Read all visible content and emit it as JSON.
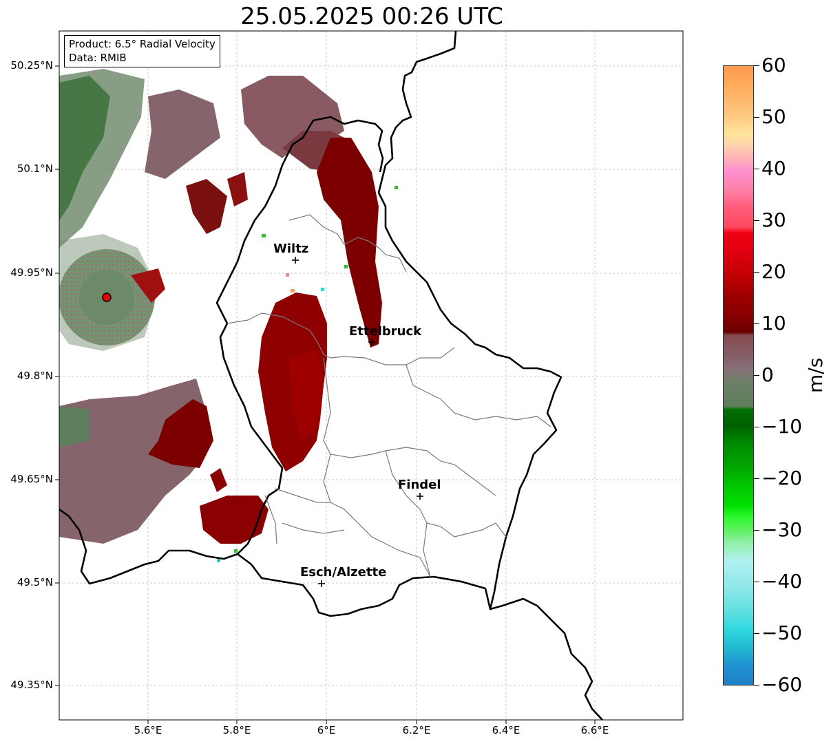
{
  "title": "25.05.2025 00:26 UTC",
  "info_box": {
    "product": "Product: 6.5° Radial Velocity",
    "data": "Data: RMIB"
  },
  "lat_ticks": [
    "50.25°N",
    "50.1°N",
    "49.95°N",
    "49.8°N",
    "49.65°N",
    "49.5°N",
    "49.35°N"
  ],
  "lon_ticks": [
    "5.6°E",
    "5.8°E",
    "6°E",
    "6.2°E",
    "6.4°E",
    "6.6°E"
  ],
  "cities": [
    {
      "name": "Wiltz"
    },
    {
      "name": "Ettelbruck"
    },
    {
      "name": "Findel"
    },
    {
      "name": "Esch/Alzette"
    }
  ],
  "colorbar": {
    "unit": "m/s",
    "ticks": [
      "60",
      "50",
      "40",
      "30",
      "20",
      "10",
      "0",
      "−10",
      "−20",
      "−30",
      "−40",
      "−50",
      "−60"
    ],
    "range": [
      -60,
      60
    ]
  },
  "colors": {
    "strong_outbound": "#8b0000",
    "weak_outbound": "#8a5a62",
    "near_zero": "#7a7a72",
    "weak_inbound": "#5f7e5c",
    "strong_inbound": "#006400",
    "radar_site": "#e00000"
  }
}
